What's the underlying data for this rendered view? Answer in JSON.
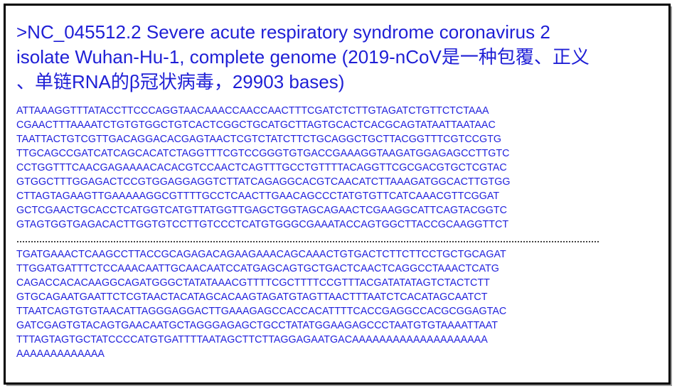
{
  "title": ">NC_045512.2 Severe acute respiratory syndrome coronavirus 2\nisolate Wuhan-Hu-1, complete genome (2019-nCoV是一种包覆、正义\n、单链RNA的β冠状病毒，29903 bases)",
  "sequence_start": [
    "ATTAAAGGTTTATACCTTCCCAGGTAACAAACCAACCAACTTTCGATCTCTTGTAGATCTGTTCTCTAAA",
    "CGAACTTTAAAATCTGTGTGGCTGTCACTCGGCTGCATGCTTAGTGCACTCACGCAGTATAATTAATAAC",
    "TAATTACTGTCGTTGACAGGACACGAGTAACTCGTCTATCTTCTGCAGGCTGCTTACGGTTTCGTCCGTG",
    "TTGCAGCCGATCATCAGCACATCTAGGTTTCGTCCGGGTGTGACCGAAAGGTAAGATGGAGAGCCTTGTC",
    "CCTGGTTTCAACGAGAAAACACACGTCCAACTCAGTTTGCCTGTTTTACAGGTTCGCGACGTGCTCGTAC",
    "GTGGCTTTGGAGACTCCGTGGAGGAGGTCTTATCAGAGGCACGTCAACATCTTAAAGATGGCACTTGTGG",
    "CTTAGTAGAAGTTGAAAAAGGCGTTTTGCCTCAACTTGAACAGCCCTATGTGTTCATCAAACGTTCGGAT",
    "GCTCGAACTGCACCTCATGGTCATGTTATGGTTGAGCTGGTAGCAGAACTCGAAGGCATTCAGTACGGTC",
    "GTAGTGGTGAGACACTTGGTGTCCTTGTCCCTCATGTGGGCGAAATACCAGTGGCTTACCGCAAGGTTCT"
  ],
  "sequence_end": [
    "TGATGAAACTCAAGCCTTACCGCAGAGACAGAAGAAACAGCAAACTGTGACTCTTCTTCCTGCTGCAGAT",
    "TTGGATGATTTCTCCAAACAATTGCAACAATCCATGAGCAGTGCTGACTCAACTCAGGCCTAAACTCATG",
    "CAGACCACACAAGGCAGATGGGCTATATAAACGTTTTCGCTTTTCCGTTTACGATATATAGTCTACTCTT",
    "GTGCAGAATGAATTCTCGTAACTACATAGCACAAGTAGATGTAGTTAACTTTAATCTCACATAGCAATCT",
    "TTAATCAGTGTGTAACATTAGGGAGGACTTGAAAGAGCCACCACATTTTCACCGAGGCCACGCGGAGTAC",
    "GATCGAGTGTACAGTGAACAATGCTAGGGAGAGCTGCCTATATGGAAGAGCCCTAATGTGTAAAATTAAT",
    "TTTAGTAGTGCTATCCCCATGTGATTTTAATAGCTTCTTAGGAGAATGACAAAAAAAAAAAAAAAAAAAA",
    "AAAAAAAAAAAAA"
  ],
  "colors": {
    "text": "#2222dd",
    "border": "#000000"
  }
}
